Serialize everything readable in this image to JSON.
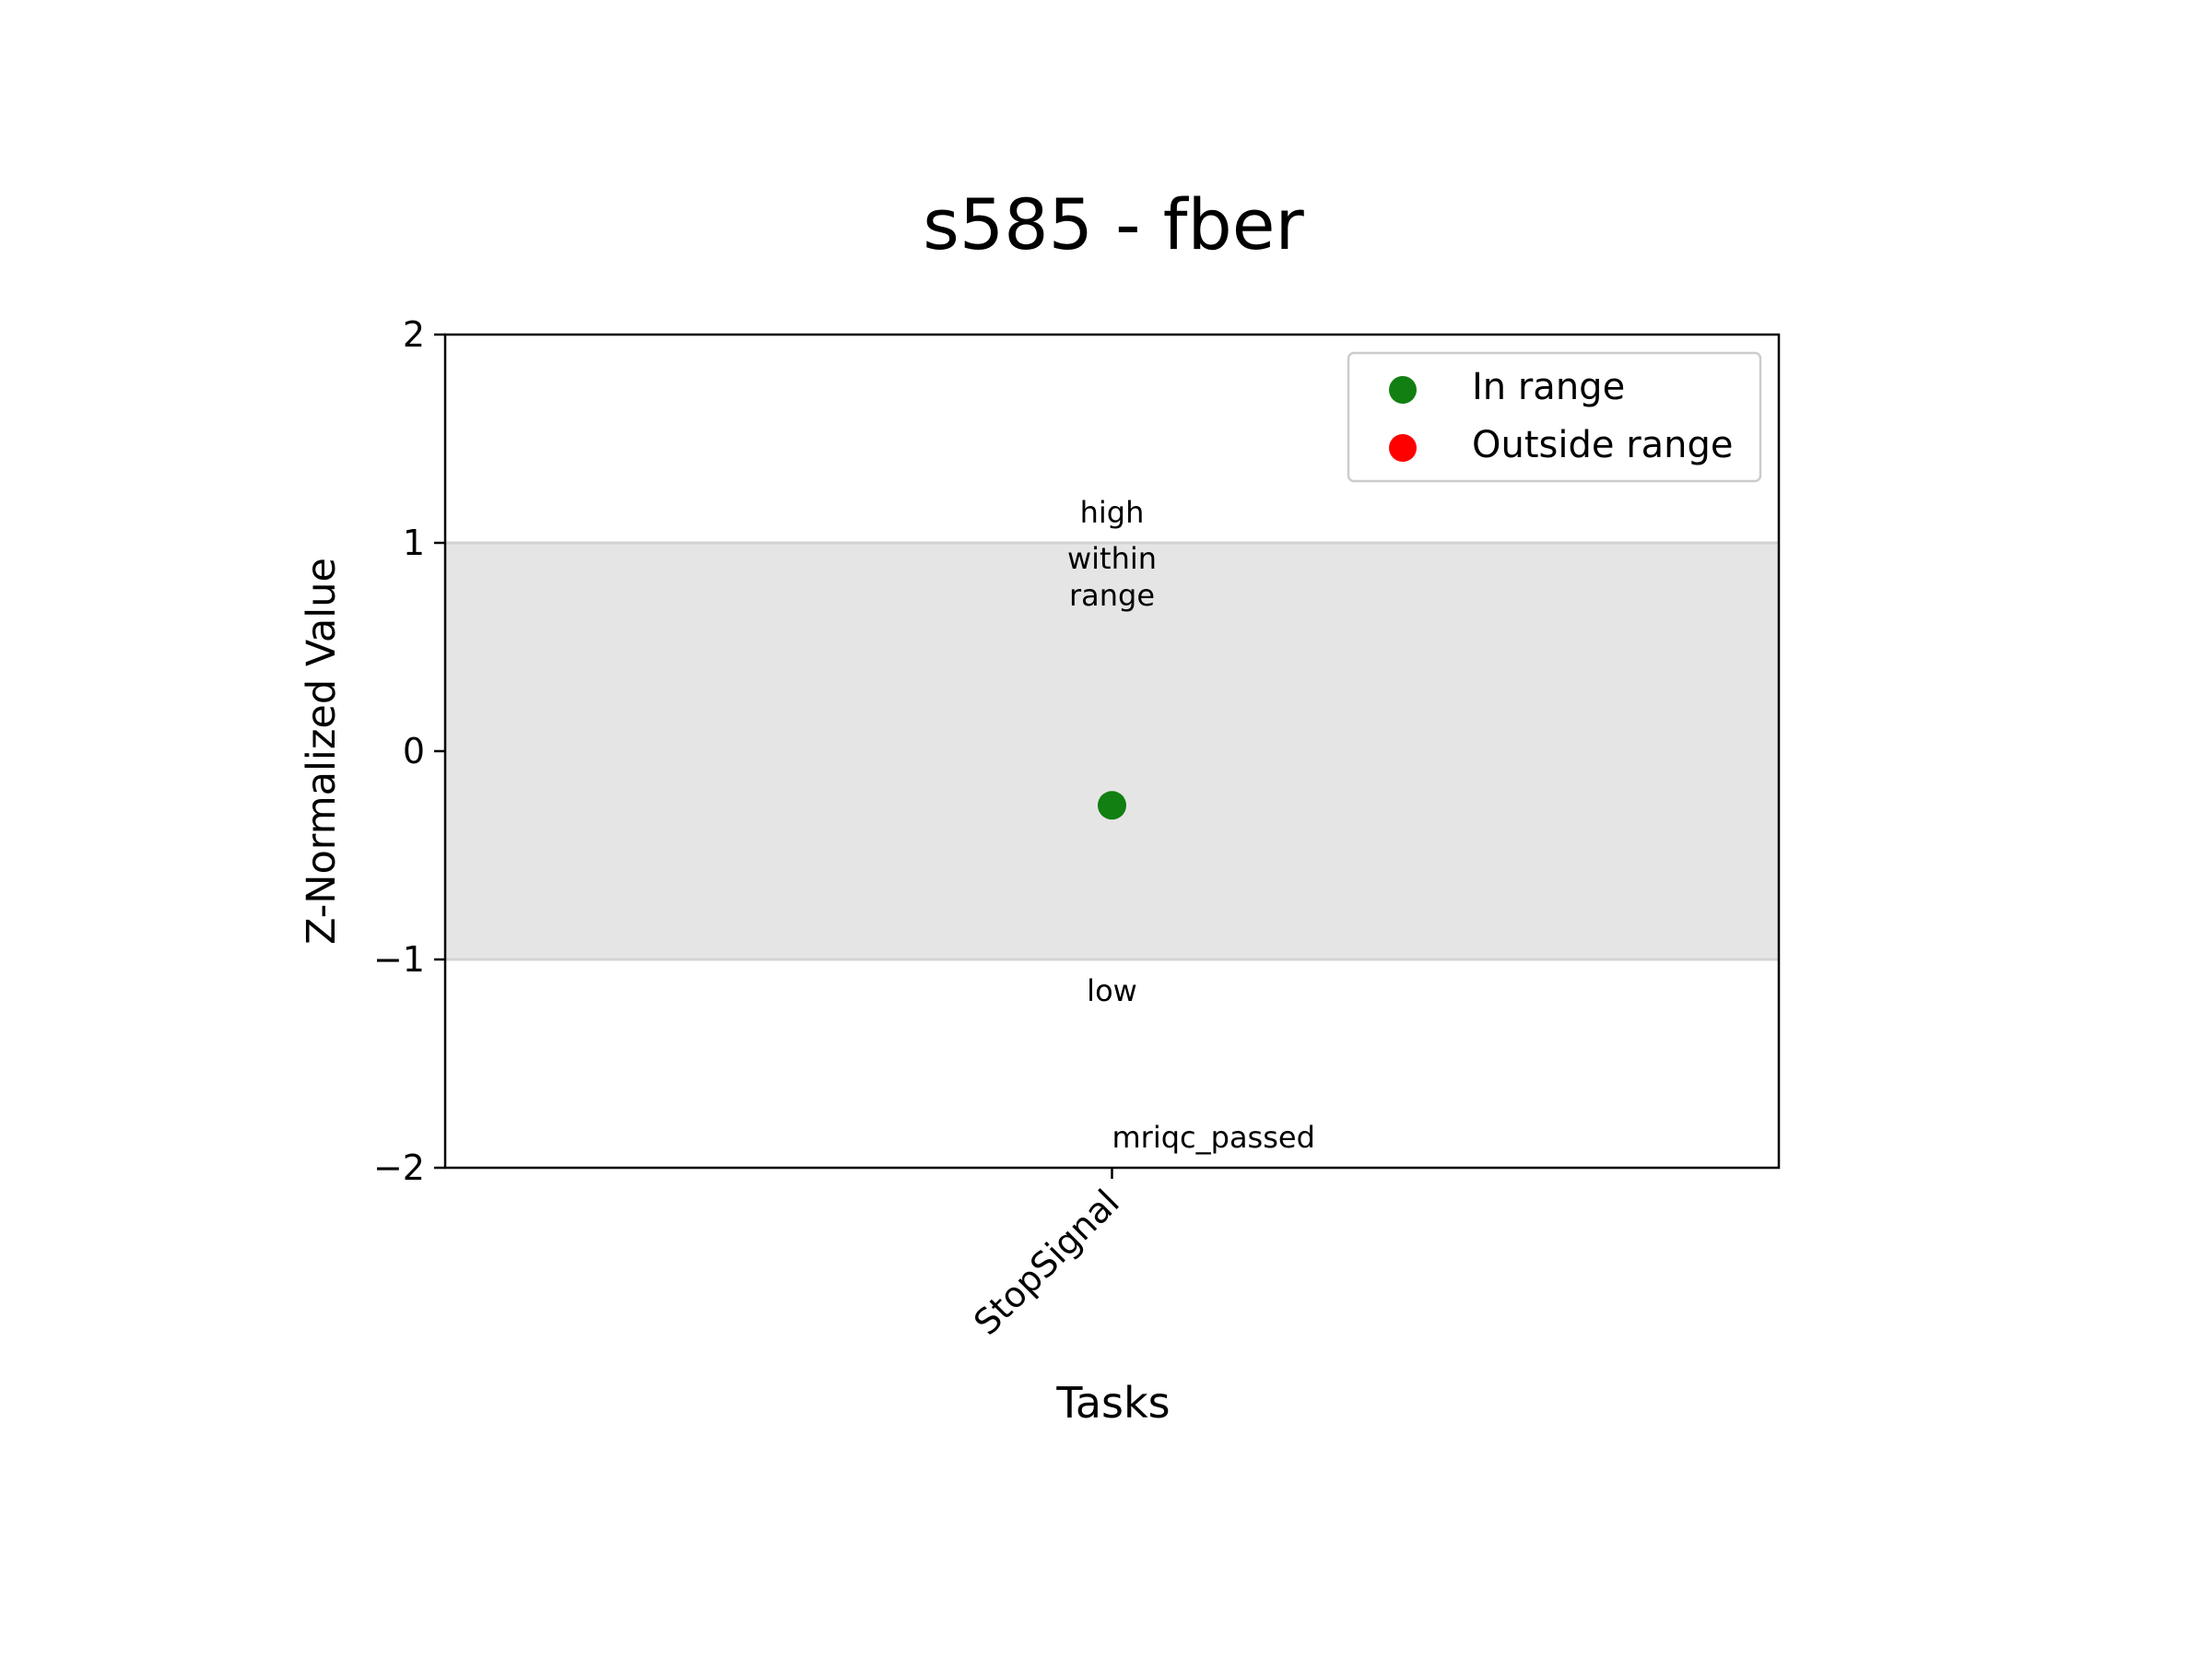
{
  "chart_data": {
    "type": "scatter",
    "title": "s585 - fber",
    "xlabel": "Tasks",
    "ylabel": "Z-Normalized Value",
    "categories": [
      "StopSignal"
    ],
    "ylim": [
      -2,
      2
    ],
    "yticks": [
      2,
      1,
      0,
      -1,
      -2
    ],
    "ytick_labels": [
      "2",
      "1",
      "0",
      "−1",
      "−2"
    ],
    "grid": false,
    "range_band": {
      "from": -1,
      "to": 1,
      "color": "#e5e5e5",
      "edge_color": "#d3d3d3"
    },
    "series": [
      {
        "name": "In range",
        "color": "#117f11",
        "points": [
          {
            "category": "StopSignal",
            "y": -0.26
          }
        ]
      },
      {
        "name": "Outside range",
        "color": "#ff0000",
        "points": []
      }
    ],
    "annotations": {
      "high": "high",
      "within": [
        "within",
        "range"
      ],
      "low": "low",
      "passed": "mriqc_passed"
    },
    "legend_position": "top-right"
  }
}
